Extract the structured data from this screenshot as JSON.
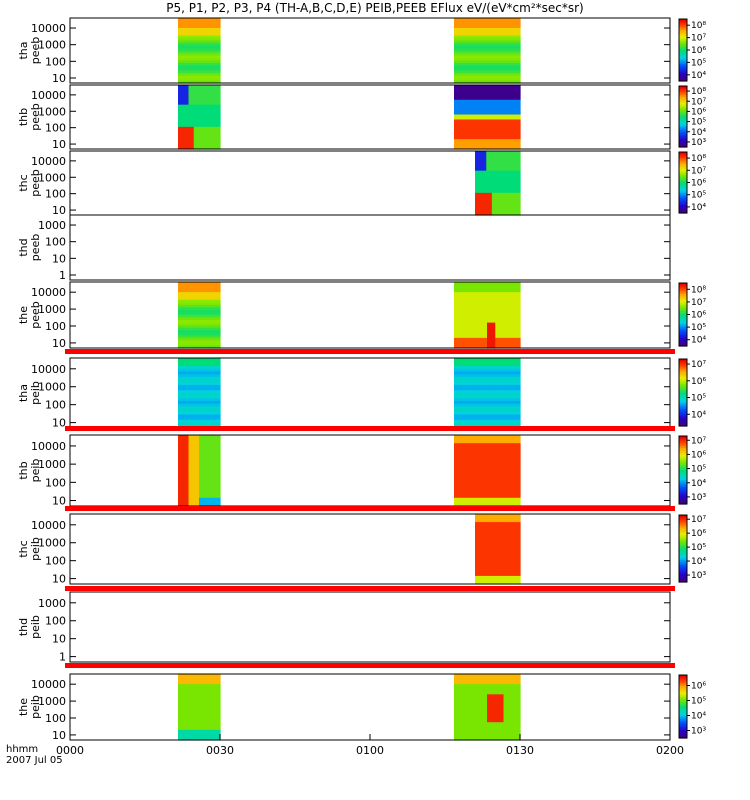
{
  "title": "P5, P1, P2, P3, P4 (TH-A,B,C,D,E) PEIB,PEEB EFlux eV/(eV*cm²*sec*sr)",
  "x_axis": {
    "label": "hhmm",
    "date": "2007 Jul 05",
    "ticks": [
      "0000",
      "0030",
      "0100",
      "0130",
      "0200"
    ]
  },
  "chart_data": {
    "type": "heatmap",
    "title": "P5, P1, P2, P3, P4 (TH-A,B,C,D,E) PEIB,PEEB EFlux eV/(eV*cm²*sec*sr)",
    "xlabel": "hhmm",
    "x_range_minutes": [
      0,
      120
    ],
    "panels": [
      {
        "name": "tha peeb",
        "line1": "tha",
        "line2": "peeb",
        "ylim": [
          5,
          40000
        ],
        "yticks": [
          "10000",
          "1000",
          "100",
          "10"
        ],
        "cbar": [
          "10⁸",
          "10⁷",
          "10⁶",
          "10⁵",
          "10⁴"
        ],
        "cbar_range": [
          3.5,
          8.5
        ],
        "blocks": [
          {
            "start": 21.6,
            "end": 30.0,
            "pattern": "green-yellow band, orange high energy"
          },
          {
            "start": 76.8,
            "end": 90.0,
            "pattern": "green-yellow band, orange high energy"
          }
        ],
        "fill_bar": false
      },
      {
        "name": "thb peeb",
        "line1": "thb",
        "line2": "peeb",
        "ylim": [
          5,
          40000
        ],
        "yticks": [
          "10000",
          "1000",
          "100",
          "10"
        ],
        "cbar": [
          "10⁸",
          "10⁷",
          "10⁶",
          "10⁵",
          "10⁴",
          "10³"
        ],
        "cbar_range": [
          2.5,
          8.5
        ],
        "blocks": [
          {
            "start": 21.6,
            "end": 30.0,
            "pattern": "red low energy, blue high energy"
          },
          {
            "start": 76.8,
            "end": 90.0,
            "pattern": "red low energy, purple high energy"
          }
        ],
        "fill_bar": false
      },
      {
        "name": "thc peeb",
        "line1": "thc",
        "line2": "peeb",
        "ylim": [
          5,
          40000
        ],
        "yticks": [
          "10000",
          "1000",
          "100",
          "10"
        ],
        "cbar": [
          "10⁸",
          "10⁷",
          "10⁶",
          "10⁵",
          "10⁴"
        ],
        "cbar_range": [
          3.5,
          8.5
        ],
        "blocks": [
          {
            "start": 81.0,
            "end": 90.0,
            "pattern": "red low energy, blue high energy"
          }
        ],
        "fill_bar": false
      },
      {
        "name": "thd peeb",
        "line1": "thd",
        "line2": "peeb",
        "ylim": [
          0.5,
          4000
        ],
        "yticks": [
          "1000",
          "100",
          "10",
          "1"
        ],
        "cbar": [],
        "cbar_range": null,
        "blocks": [],
        "fill_bar": false
      },
      {
        "name": "the peeb",
        "line1": "the",
        "line2": "peeb",
        "ylim": [
          5,
          40000
        ],
        "yticks": [
          "10000",
          "1000",
          "100",
          "10"
        ],
        "cbar": [
          "10⁸",
          "10⁷",
          "10⁶",
          "10⁵",
          "10⁴"
        ],
        "cbar_range": [
          3.5,
          8.5
        ],
        "blocks": [
          {
            "start": 21.6,
            "end": 30.0,
            "pattern": "green-yellow band, orange high energy"
          },
          {
            "start": 76.8,
            "end": 90.0,
            "pattern": "yellow with red hot spot near 0122"
          }
        ],
        "fill_bar": false
      },
      {
        "name": "tha peib",
        "line1": "tha",
        "line2": "peib",
        "ylim": [
          5,
          40000
        ],
        "yticks": [
          "10000",
          "1000",
          "100",
          "10"
        ],
        "cbar": [
          "10⁷",
          "10⁶",
          "10⁵",
          "10⁴"
        ],
        "cbar_range": [
          3.3,
          7.3
        ],
        "blocks": [
          {
            "start": 21.6,
            "end": 30.0,
            "pattern": "cyan"
          },
          {
            "start": 76.8,
            "end": 90.0,
            "pattern": "cyan"
          }
        ],
        "fill_bar": true
      },
      {
        "name": "thb peib",
        "line1": "thb",
        "line2": "peib",
        "ylim": [
          5,
          40000
        ],
        "yticks": [
          "10000",
          "1000",
          "100",
          "10"
        ],
        "cbar": [
          "10⁷",
          "10⁶",
          "10⁵",
          "10⁴",
          "10³"
        ],
        "cbar_range": [
          2.5,
          7.3
        ],
        "blocks": [
          {
            "start": 21.6,
            "end": 30.0,
            "pattern": "red-yellow-green"
          },
          {
            "start": 76.8,
            "end": 90.0,
            "pattern": "red"
          }
        ],
        "fill_bar": true
      },
      {
        "name": "thc peib",
        "line1": "thc",
        "line2": "peib",
        "ylim": [
          5,
          40000
        ],
        "yticks": [
          "10000",
          "1000",
          "100",
          "10"
        ],
        "cbar": [
          "10⁷",
          "10⁶",
          "10⁵",
          "10⁴",
          "10³"
        ],
        "cbar_range": [
          2.5,
          7.3
        ],
        "blocks": [
          {
            "start": 81.0,
            "end": 90.0,
            "pattern": "red"
          }
        ],
        "fill_bar": true
      },
      {
        "name": "thd peib",
        "line1": "thd",
        "line2": "peib",
        "ylim": [
          0.5,
          4000
        ],
        "yticks": [
          "1000",
          "100",
          "10",
          "1"
        ],
        "cbar": [],
        "cbar_range": null,
        "blocks": [],
        "fill_bar": true
      },
      {
        "name": "the peib",
        "line1": "the",
        "line2": "peib",
        "ylim": [
          5,
          40000
        ],
        "yticks": [
          "10000",
          "1000",
          "100",
          "10"
        ],
        "cbar": [
          "10⁶",
          "10⁵",
          "10⁴",
          "10³"
        ],
        "cbar_range": [
          2.5,
          6.7
        ],
        "blocks": [
          {
            "start": 21.6,
            "end": 30.0,
            "pattern": "green-yellow"
          },
          {
            "start": 76.8,
            "end": 90.0,
            "pattern": "green-yellow with red spot"
          }
        ],
        "fill_bar": true
      }
    ]
  },
  "colors": {
    "fill_bar": "#ff0000",
    "axis": "#000000",
    "background": "#ffffff"
  }
}
